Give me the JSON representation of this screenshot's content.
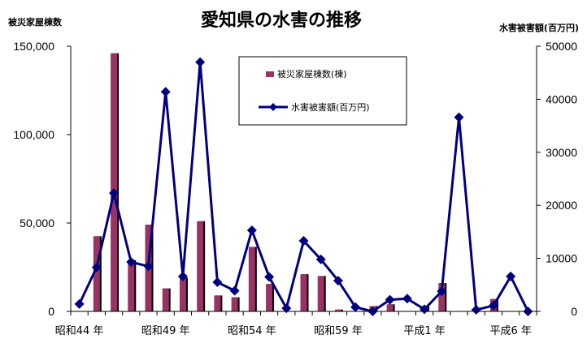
{
  "chart_data": {
    "type": "bar+line",
    "title": "愛知県の水害の推移",
    "left_axis_label": "被災家屋棟数",
    "right_axis_label": "水害被害額(百万円)",
    "left_ylim": [
      0,
      150000
    ],
    "right_ylim": [
      0,
      50000
    ],
    "left_ticks": [
      "0",
      "50,000",
      "100,000",
      "150,000"
    ],
    "right_ticks": [
      "0",
      "10000",
      "20000",
      "30000",
      "40000",
      "50000"
    ],
    "x_tick_labels": [
      {
        "index": 0,
        "label": "昭和44 年"
      },
      {
        "index": 5,
        "label": "昭和49 年"
      },
      {
        "index": 10,
        "label": "昭和54 年"
      },
      {
        "index": 15,
        "label": "昭和59 年"
      },
      {
        "index": 20,
        "label": "平成1 年"
      },
      {
        "index": 25,
        "label": "平成6 年"
      }
    ],
    "categories_count": 27,
    "series": [
      {
        "name": "被災家屋棟数(棟)",
        "type": "bar",
        "axis": "left",
        "color": "#993366",
        "values": [
          0,
          42500,
          146000,
          29000,
          49000,
          13000,
          19000,
          51000,
          9000,
          8000,
          36500,
          15500,
          0,
          21000,
          20000,
          1000,
          0,
          3000,
          4000,
          0,
          3000,
          16000,
          0,
          0,
          7000,
          0,
          0
        ]
      },
      {
        "name": "水害被害額(百万円)",
        "type": "line",
        "axis": "right",
        "color": "#000080",
        "values": [
          1400,
          8300,
          22300,
          9300,
          8500,
          41400,
          6600,
          47000,
          5500,
          3900,
          15300,
          6500,
          600,
          13300,
          9800,
          5800,
          800,
          0,
          2200,
          2400,
          400,
          3800,
          36600,
          300,
          1100,
          6600,
          0
        ]
      }
    ],
    "legend": {
      "position": "top-center",
      "bar_label": "被災家屋棟数(棟)",
      "line_label": "水害被害額(百万円)"
    },
    "grid": false
  }
}
